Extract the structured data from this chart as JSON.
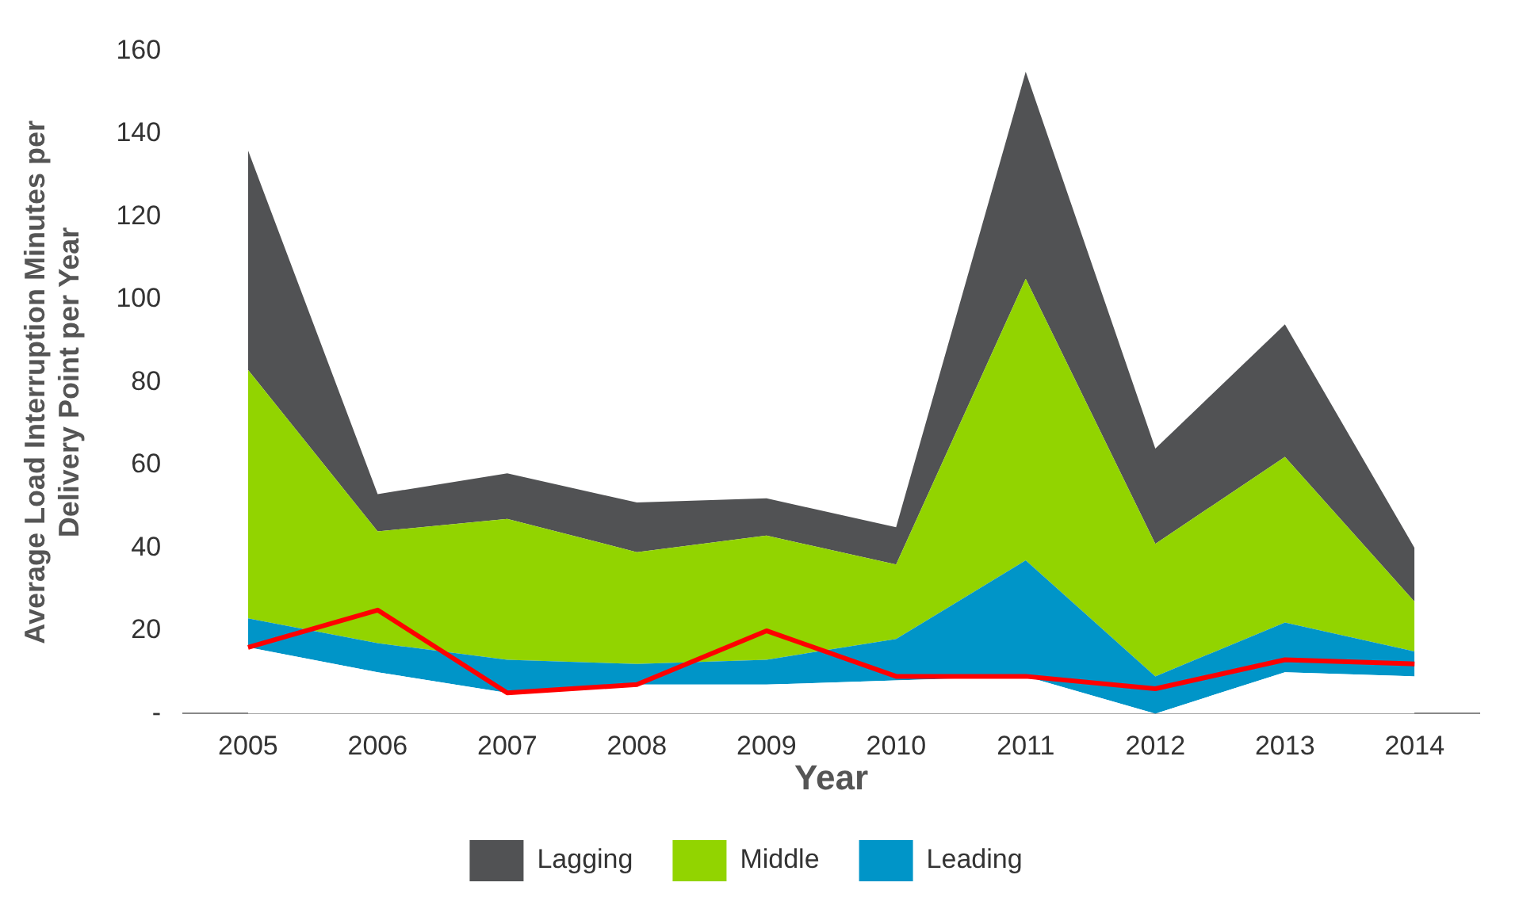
{
  "chart_data": {
    "type": "area",
    "stacked": true,
    "xlabel": "Year",
    "ylabel": "Average Load Interruption Minutes per Delivery Point per Year",
    "categories": [
      "2005",
      "2006",
      "2007",
      "2008",
      "2009",
      "2010",
      "2011",
      "2012",
      "2013",
      "2014"
    ],
    "series": [
      {
        "color": "#ffffff",
        "values": [
          16,
          10,
          5,
          7,
          7,
          8,
          9,
          0,
          10,
          9
        ]
      },
      {
        "name": "Leading",
        "color": "#0095c8",
        "values": [
          7,
          7,
          8,
          5,
          6,
          10,
          28,
          9,
          12,
          6
        ]
      },
      {
        "name": "Middle",
        "color": "#92d400",
        "values": [
          60,
          27,
          34,
          27,
          30,
          18,
          68,
          32,
          40,
          12
        ]
      },
      {
        "name": "Lagging",
        "color": "#515254",
        "values": [
          53,
          9,
          11,
          12,
          9,
          9,
          50,
          23,
          32,
          13
        ]
      },
      {
        "type": "line",
        "color": "#ff0000",
        "values": [
          16,
          25,
          5,
          7,
          20,
          9,
          9,
          6,
          13,
          12
        ]
      }
    ],
    "ylim": [
      0,
      160
    ],
    "yticks": [
      {
        "value": 0,
        "label": "-"
      },
      20,
      40,
      60,
      80,
      100,
      120,
      140,
      160
    ],
    "grid": false,
    "legend": "bottom",
    "marker": "none",
    "line_style": "solid"
  }
}
